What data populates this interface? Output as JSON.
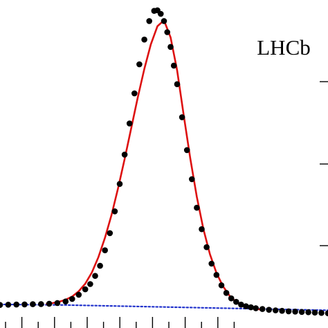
{
  "chart_data": {
    "type": "scatter",
    "annotation": "LHCb",
    "title": "",
    "xlabel": "",
    "ylabel": "",
    "xlim": [
      0,
      100
    ],
    "ylim": [
      0,
      100
    ],
    "grid": false,
    "colors": {
      "points": "#000000",
      "fit": "#dd1111",
      "background_fit": "#2233cc"
    },
    "series": [
      {
        "kind": "points",
        "x": [
          0,
          2.5,
          5,
          7.5,
          10,
          12.5,
          15,
          17.5,
          20,
          22,
          24,
          26,
          27.5,
          29,
          30.5,
          32,
          33.5,
          35,
          36.5,
          38,
          39.5,
          41,
          42.5,
          44,
          45.5,
          47,
          48,
          49,
          50,
          51,
          52,
          53,
          54,
          55.5,
          57,
          58.5,
          60,
          61.5,
          63,
          64.5,
          66,
          67.5,
          69,
          70.5,
          72,
          73.5,
          75,
          76.5,
          78,
          80,
          82,
          84,
          86,
          88,
          90,
          92,
          94,
          96,
          98,
          100
        ],
        "y": [
          7.03,
          7.1,
          7.15,
          7.2,
          7.25,
          7.31,
          7.41,
          7.62,
          8.09,
          8.86,
          10.15,
          11.8,
          13.4,
          15.89,
          18.97,
          23.7,
          28.93,
          35.57,
          43.92,
          52.87,
          62.37,
          71.54,
          80.41,
          87.94,
          93.59,
          96.69,
          96.86,
          95.79,
          93.59,
          90.2,
          85.69,
          79.99,
          74.33,
          64.26,
          54.24,
          45.37,
          36.67,
          30.12,
          24.64,
          19.61,
          16.18,
          13.01,
          10.7,
          9.02,
          7.97,
          7.14,
          6.62,
          6.3,
          6.03,
          5.79,
          5.54,
          5.39,
          5.24,
          5.09,
          5.0,
          4.9,
          4.8,
          4.7,
          4.6,
          4.5
        ]
      },
      {
        "kind": "line",
        "style": "solid",
        "x": [
          14,
          16,
          18,
          20,
          22,
          24,
          26,
          28,
          30,
          32,
          34,
          36,
          38,
          40,
          42,
          44,
          46,
          48,
          50,
          52,
          54,
          56,
          58,
          60,
          62,
          64,
          66,
          68,
          70,
          72,
          74,
          76,
          78,
          80
        ],
        "y": [
          7.3,
          7.6,
          8.0,
          8.6,
          9.6,
          11.2,
          13.5,
          16.9,
          21.6,
          27.5,
          34.5,
          42.6,
          51.5,
          60.9,
          70.3,
          79.0,
          86.5,
          92.0,
          93.8,
          88.6,
          78.5,
          65.0,
          51.8,
          40.0,
          30.2,
          22.5,
          16.8,
          12.7,
          9.8,
          7.9,
          6.7,
          6.1,
          5.8,
          5.6
        ]
      },
      {
        "kind": "line",
        "style": "dotted",
        "x": [
          0,
          20,
          40,
          60,
          80,
          100
        ],
        "y": [
          7.2,
          7.0,
          6.6,
          6.2,
          5.8,
          5.4
        ]
      }
    ]
  }
}
